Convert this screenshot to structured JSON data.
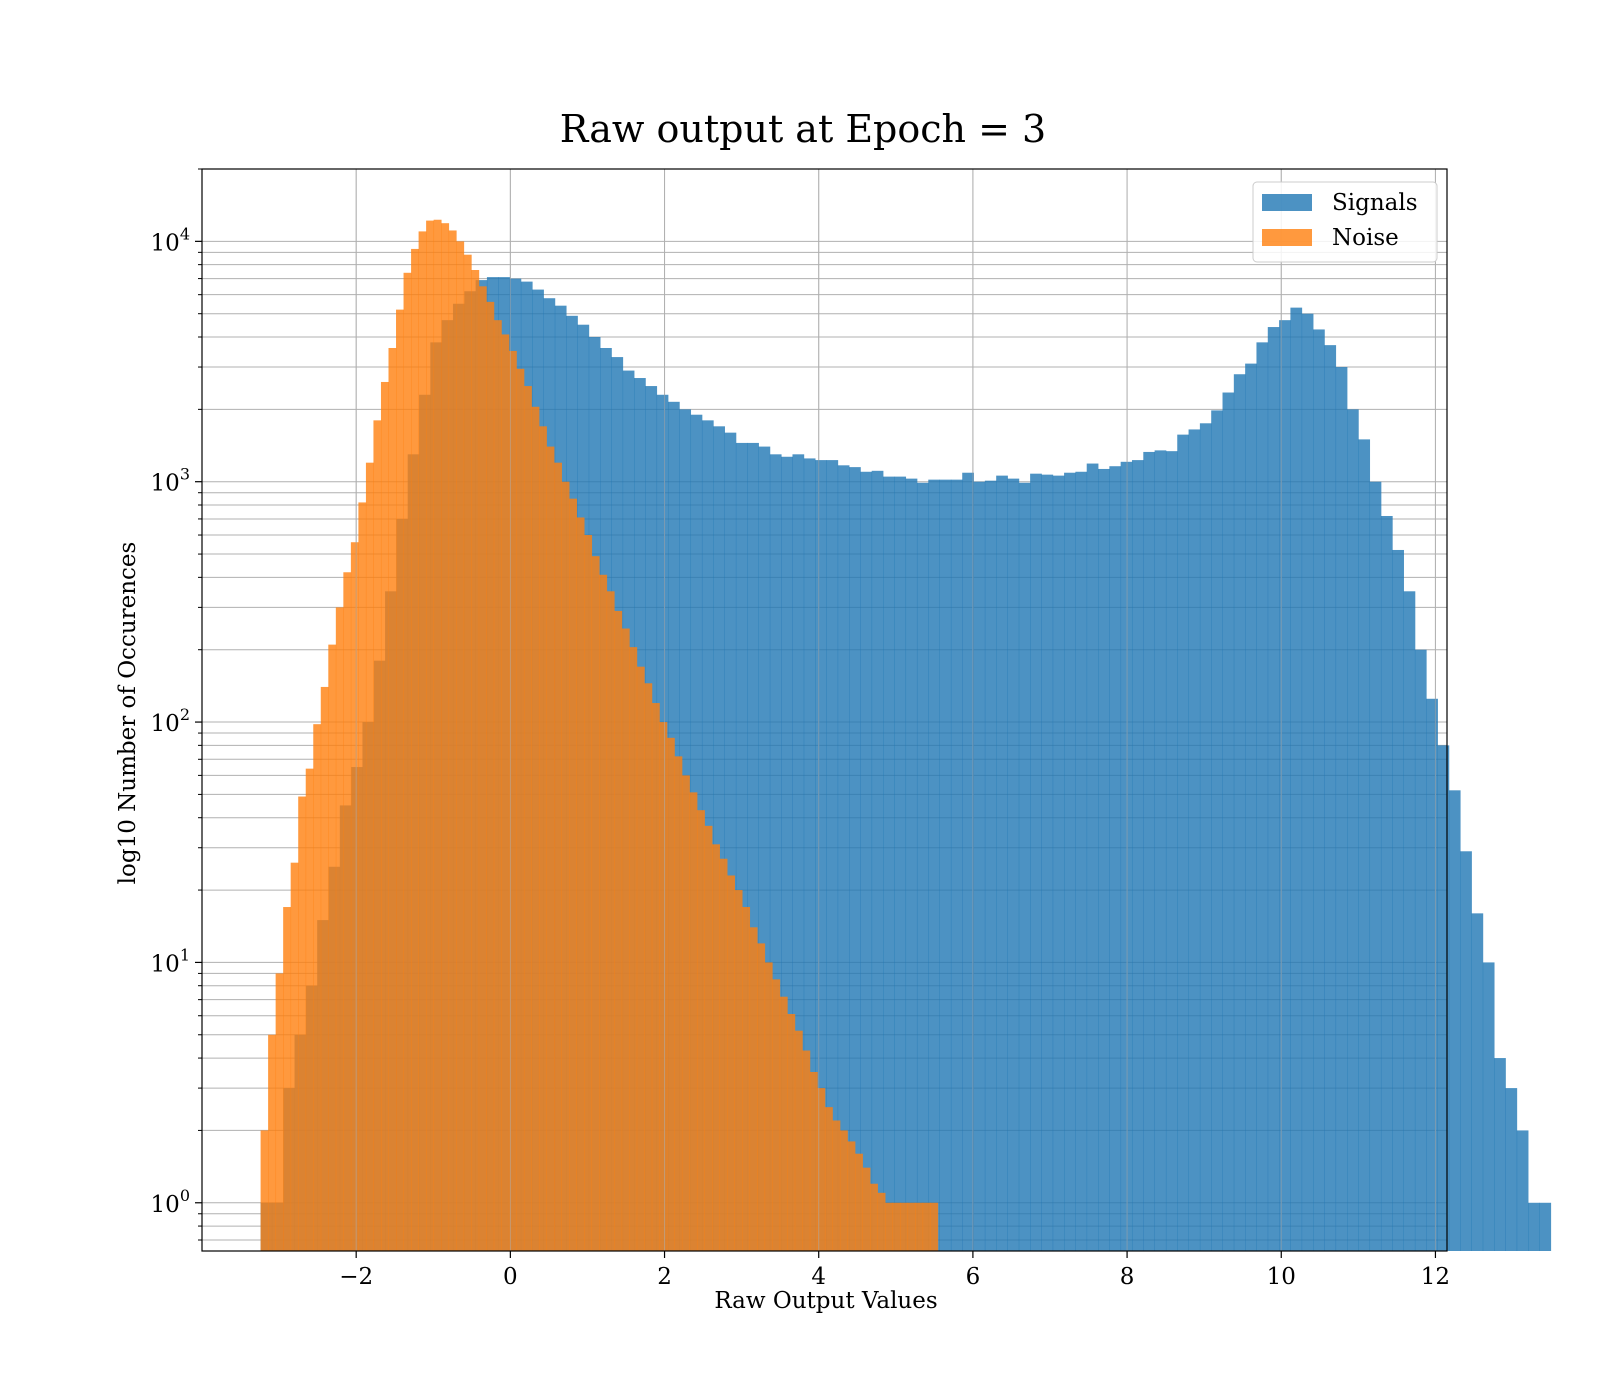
{
  "chart_data": {
    "type": "histogram",
    "title": "Raw output at Epoch = 3",
    "xlabel": "Raw Output Values",
    "ylabel": "log10 Number of Occurences",
    "y_scale": "log",
    "xlim": [
      -4.0,
      12.15
    ],
    "ylim": [
      0.63,
      20000
    ],
    "x_ticks": [
      -2,
      0,
      2,
      4,
      6,
      8,
      10,
      12
    ],
    "x_tick_labels": [
      "−2",
      "0",
      "2",
      "4",
      "6",
      "8",
      "10",
      "12"
    ],
    "y_major_ticks": [
      1,
      10,
      100,
      1000,
      10000
    ],
    "y_tick_labels": [
      {
        "base": "10",
        "exp": "0"
      },
      {
        "base": "10",
        "exp": "1"
      },
      {
        "base": "10",
        "exp": "2"
      },
      {
        "base": "10",
        "exp": "3"
      },
      {
        "base": "10",
        "exp": "4"
      }
    ],
    "grid": true,
    "grid_minor_y": true,
    "legend_position": "top-right",
    "series": [
      {
        "name": "Signals",
        "color": "#1f77b4",
        "opacity": 0.8,
        "x_start": -3.24,
        "bin_width": 0.1468,
        "values": [
          1,
          1,
          3,
          5,
          8,
          15,
          25,
          45,
          65,
          100,
          180,
          350,
          700,
          1300,
          2300,
          3800,
          4700,
          5500,
          6200,
          6900,
          7100,
          7100,
          7000,
          6800,
          6300,
          5800,
          5400,
          4900,
          4500,
          4000,
          3600,
          3300,
          2900,
          2700,
          2500,
          2300,
          2150,
          2000,
          1900,
          1800,
          1700,
          1600,
          1450,
          1450,
          1400,
          1300,
          1270,
          1300,
          1250,
          1230,
          1230,
          1170,
          1150,
          1100,
          1110,
          1050,
          1050,
          1030,
          990,
          1020,
          1020,
          1020,
          1090,
          1000,
          1010,
          1060,
          1030,
          990,
          1080,
          1070,
          1060,
          1090,
          1100,
          1190,
          1130,
          1160,
          1210,
          1230,
          1330,
          1350,
          1340,
          1570,
          1650,
          1750,
          1980,
          2350,
          2800,
          3100,
          3800,
          4400,
          4700,
          5300,
          5000,
          4300,
          3700,
          3000,
          2000,
          1500,
          1000,
          720,
          520,
          350,
          200,
          125,
          80,
          52,
          29,
          16,
          10,
          4,
          3,
          2,
          1,
          1
        ]
      },
      {
        "name": "Noise",
        "color": "#ff7f0e",
        "opacity": 0.8,
        "x_start": -3.24,
        "bin_width": 0.0976,
        "values": [
          2,
          5,
          9,
          17,
          26,
          49,
          64,
          98,
          140,
          210,
          300,
          420,
          560,
          820,
          1200,
          1800,
          2600,
          3600,
          5200,
          7400,
          9300,
          11000,
          12200,
          12300,
          11900,
          11100,
          10000,
          8800,
          7600,
          6500,
          5600,
          4700,
          4100,
          3500,
          2950,
          2500,
          2050,
          1700,
          1400,
          1200,
          1000,
          850,
          710,
          600,
          490,
          410,
          350,
          290,
          245,
          205,
          170,
          145,
          120,
          100,
          86,
          72,
          60,
          51,
          43,
          37,
          31,
          27,
          23,
          20,
          17,
          14,
          12,
          10,
          8.5,
          7.2,
          6.1,
          5.2,
          4.3,
          3.5,
          3,
          2.5,
          2.2,
          2,
          1.8,
          1.6,
          1.4,
          1.2,
          1.1,
          1,
          1,
          1,
          1,
          1,
          1,
          1
        ]
      }
    ]
  }
}
